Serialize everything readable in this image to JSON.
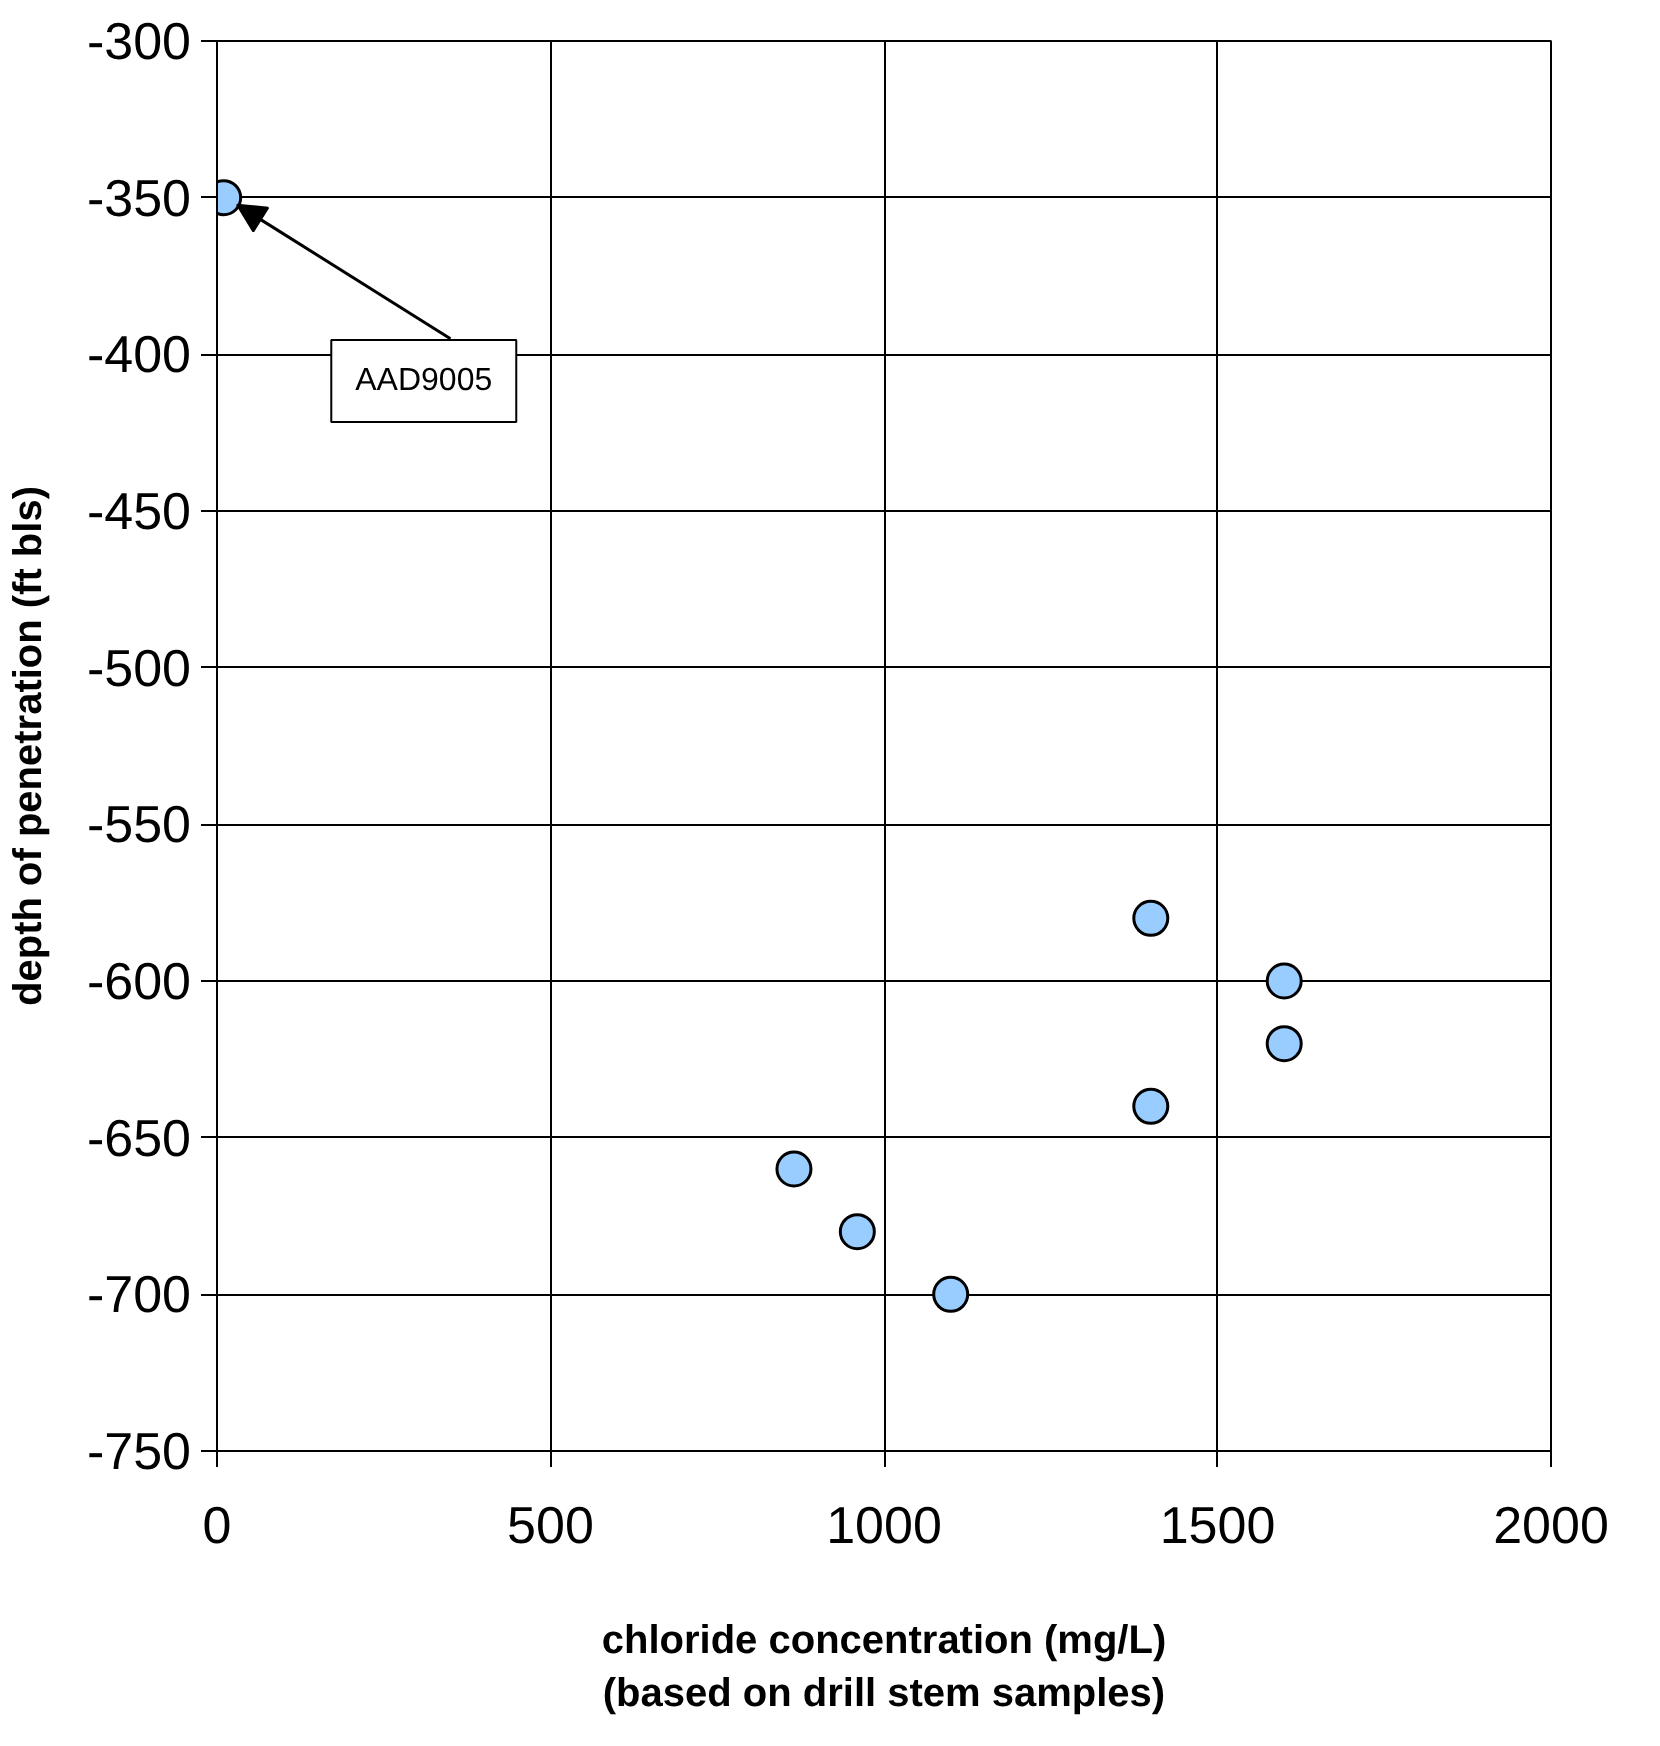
{
  "chart_data": {
    "type": "scatter",
    "xlabel": "chloride concentration (mg/L)\n(based on drill stem samples)",
    "ylabel": "depth of penetration (ft bls)",
    "x": [
      10,
      865,
      960,
      1100,
      1400,
      1400,
      1600,
      1600
    ],
    "series": [
      {
        "color": "#99ccff",
        "values": [
          -350,
          -660,
          -680,
          -700,
          -580,
          -640,
          -600,
          -620
        ]
      }
    ],
    "xlim": [
      0,
      2000
    ],
    "xticks": [
      0,
      500,
      1000,
      1500,
      2000
    ],
    "ylim": [
      -750,
      -300
    ],
    "yticks": [
      -750,
      -700,
      -650,
      -600,
      -550,
      -500,
      -450,
      -400,
      -350,
      -300
    ],
    "grid": true,
    "marker": "circle",
    "annotations": [
      {
        "text": "AAD9005",
        "x": 10,
        "y": -350
      }
    ]
  }
}
